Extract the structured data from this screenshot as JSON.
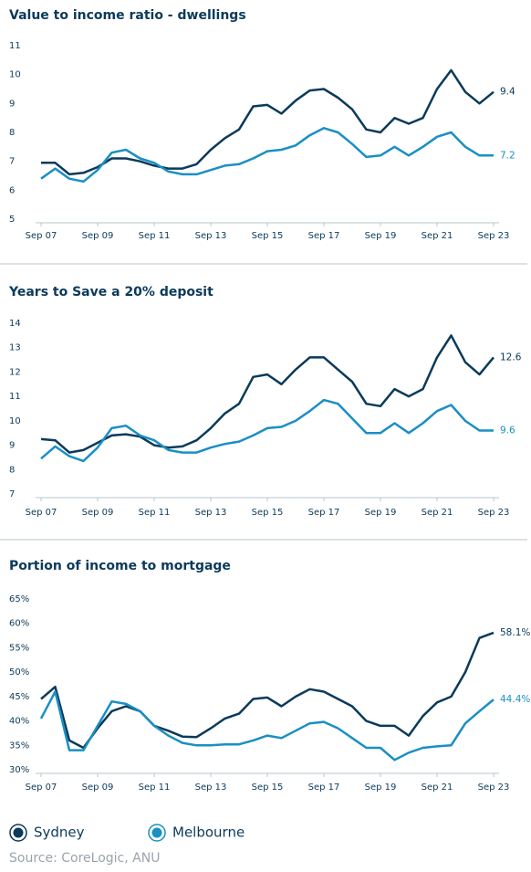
{
  "chart_data": [
    {
      "type": "line",
      "title": "Value to income ratio - dwellings",
      "categories": [
        "Sep 07",
        null,
        null,
        null,
        "Sep 09",
        null,
        null,
        null,
        "Sep 11",
        null,
        null,
        null,
        "Sep 13",
        null,
        null,
        null,
        "Sep 15",
        null,
        null,
        null,
        "Sep 17",
        null,
        null,
        null,
        "Sep 19",
        null,
        null,
        null,
        "Sep 21",
        null,
        null,
        null,
        "Sep 23"
      ],
      "series": [
        {
          "name": "Sydney",
          "color": "#0b3a5a",
          "values": [
            6.95,
            6.95,
            6.55,
            6.6,
            6.8,
            7.1,
            7.1,
            7.0,
            6.85,
            6.75,
            6.75,
            6.9,
            7.4,
            7.8,
            8.1,
            8.9,
            8.95,
            8.65,
            9.1,
            9.45,
            9.5,
            9.2,
            8.8,
            8.1,
            8.0,
            8.5,
            8.3,
            8.5,
            9.5,
            10.15,
            9.4,
            9.0,
            9.4
          ]
        },
        {
          "name": "Melbourne",
          "color": "#1a8fc4",
          "values": [
            6.4,
            6.75,
            6.4,
            6.3,
            6.7,
            7.3,
            7.4,
            7.1,
            6.95,
            6.65,
            6.55,
            6.55,
            6.7,
            6.85,
            6.9,
            7.1,
            7.35,
            7.4,
            7.55,
            7.9,
            8.15,
            8.0,
            7.6,
            7.15,
            7.2,
            7.5,
            7.2,
            7.5,
            7.85,
            8.0,
            7.5,
            7.2,
            7.2
          ]
        }
      ],
      "ylim": [
        5,
        11
      ],
      "yticks": [
        5,
        6,
        7,
        8,
        9,
        10,
        11
      ],
      "grid": false
    },
    {
      "type": "line",
      "title": "Years to Save a 20% deposit",
      "categories": [
        "Sep 07",
        null,
        null,
        null,
        "Sep 09",
        null,
        null,
        null,
        "Sep 11",
        null,
        null,
        null,
        "Sep 13",
        null,
        null,
        null,
        "Sep 15",
        null,
        null,
        null,
        "Sep 17",
        null,
        null,
        null,
        "Sep 19",
        null,
        null,
        null,
        "Sep 21",
        null,
        null,
        null,
        "Sep 23"
      ],
      "series": [
        {
          "name": "Sydney",
          "color": "#0b3a5a",
          "values": [
            9.25,
            9.2,
            8.7,
            8.8,
            9.1,
            9.4,
            9.45,
            9.35,
            9.0,
            8.9,
            8.95,
            9.2,
            9.7,
            10.3,
            10.7,
            11.8,
            11.9,
            11.5,
            12.1,
            12.6,
            12.6,
            12.1,
            11.6,
            10.7,
            10.6,
            11.3,
            11.0,
            11.3,
            12.6,
            13.5,
            12.4,
            11.9,
            12.6
          ]
        },
        {
          "name": "Melbourne",
          "color": "#1a8fc4",
          "values": [
            8.45,
            8.95,
            8.55,
            8.35,
            8.9,
            9.7,
            9.8,
            9.4,
            9.2,
            8.8,
            8.7,
            8.7,
            8.9,
            9.05,
            9.15,
            9.4,
            9.7,
            9.75,
            10.0,
            10.4,
            10.85,
            10.7,
            10.1,
            9.5,
            9.5,
            9.9,
            9.5,
            9.9,
            10.4,
            10.65,
            10.0,
            9.6,
            9.6
          ]
        }
      ],
      "ylim": [
        7,
        14
      ],
      "yticks": [
        7,
        8,
        9,
        10,
        11,
        12,
        13,
        14
      ],
      "grid": false
    },
    {
      "type": "line",
      "title": "Portion of income to mortgage",
      "categories": [
        "Sep 07",
        null,
        null,
        null,
        "Sep 09",
        null,
        null,
        null,
        "Sep 11",
        null,
        null,
        null,
        "Sep 13",
        null,
        null,
        null,
        "Sep 15",
        null,
        null,
        null,
        "Sep 17",
        null,
        null,
        null,
        "Sep 19",
        null,
        null,
        null,
        "Sep 21",
        null,
        null,
        null,
        "Sep 23"
      ],
      "series": [
        {
          "name": "Sydney",
          "color": "#0b3a5a",
          "values": [
            44.5,
            47,
            36,
            34.5,
            38.5,
            42,
            43,
            42,
            39,
            38,
            36.8,
            36.7,
            38.5,
            40.5,
            41.5,
            44.5,
            44.8,
            43,
            45,
            46.5,
            46,
            44.5,
            43,
            40,
            39,
            39,
            37,
            41,
            43.8,
            45,
            50,
            57,
            58.1
          ],
          "value_labels": [
            null,
            null,
            null,
            null,
            null,
            null,
            null,
            null,
            null,
            null,
            null,
            null,
            null,
            null,
            null,
            null,
            null,
            null,
            null,
            null,
            null,
            null,
            null,
            null,
            null,
            null,
            null,
            null,
            null,
            null,
            null,
            null,
            "58.1%"
          ]
        },
        {
          "name": "Melbourne",
          "color": "#1a8fc4",
          "values": [
            40.5,
            46,
            34,
            34,
            39,
            44,
            43.5,
            42,
            39,
            37,
            35.5,
            35,
            35,
            35.2,
            35.2,
            36,
            37,
            36.5,
            38,
            39.5,
            39.8,
            38.5,
            36.5,
            34.5,
            34.5,
            32,
            33.5,
            34.5,
            34.8,
            35,
            39.5,
            42,
            44.4
          ],
          "value_labels": [
            null,
            null,
            null,
            null,
            null,
            null,
            null,
            null,
            null,
            null,
            null,
            null,
            null,
            null,
            null,
            null,
            null,
            null,
            null,
            null,
            null,
            null,
            null,
            null,
            null,
            null,
            null,
            null,
            null,
            null,
            null,
            null,
            "44.4%"
          ]
        }
      ],
      "ylim": [
        30,
        65
      ],
      "yticks": [
        {
          "value": 30,
          "label": "30%"
        },
        {
          "value": 35,
          "label": "35%"
        },
        {
          "value": 40,
          "label": "40%"
        },
        {
          "value": 45,
          "label": "45%"
        },
        {
          "value": 50,
          "label": "50%"
        },
        {
          "value": 55,
          "label": "55%"
        },
        {
          "value": 60,
          "label": "60%"
        },
        {
          "value": 65,
          "label": "65%"
        }
      ],
      "grid": false
    }
  ],
  "source": "Source: CoreLogic, ANU"
}
